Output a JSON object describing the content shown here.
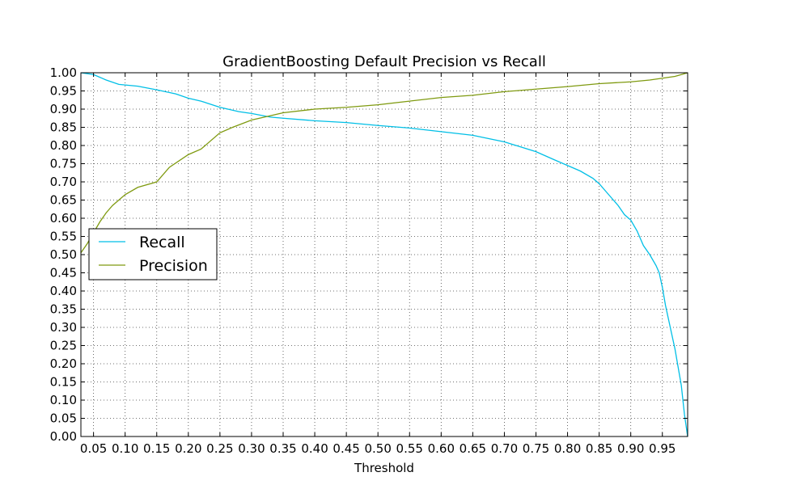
{
  "chart_data": {
    "type": "line",
    "title": "GradientBoosting Default Precision vs Recall",
    "xlabel": "Threshold",
    "ylabel": "",
    "xlim": [
      0.03,
      0.99
    ],
    "ylim": [
      0.0,
      1.0
    ],
    "x_ticks": [
      0.05,
      0.1,
      0.15,
      0.2,
      0.25,
      0.3,
      0.35,
      0.4,
      0.45,
      0.5,
      0.55,
      0.6,
      0.65,
      0.7,
      0.75,
      0.8,
      0.85,
      0.9,
      0.95
    ],
    "x_tick_labels": [
      "0.05",
      "0.10",
      "0.15",
      "0.20",
      "0.25",
      "0.30",
      "0.35",
      "0.40",
      "0.45",
      "0.50",
      "0.55",
      "0.60",
      "0.65",
      "0.70",
      "0.75",
      "0.80",
      "0.85",
      "0.90",
      "0.95"
    ],
    "y_ticks": [
      0.0,
      0.05,
      0.1,
      0.15,
      0.2,
      0.25,
      0.3,
      0.35,
      0.4,
      0.45,
      0.5,
      0.55,
      0.6,
      0.65,
      0.7,
      0.75,
      0.8,
      0.85,
      0.9,
      0.95,
      1.0
    ],
    "y_tick_labels": [
      "0.00",
      "0.05",
      "0.10",
      "0.15",
      "0.20",
      "0.25",
      "0.30",
      "0.35",
      "0.40",
      "0.45",
      "0.50",
      "0.55",
      "0.60",
      "0.65",
      "0.70",
      "0.75",
      "0.80",
      "0.85",
      "0.90",
      "0.95",
      "1.00"
    ],
    "grid": true,
    "legend_position": "center-left",
    "series": [
      {
        "name": "Recall",
        "color": "#00bfe6",
        "x": [
          0.03,
          0.05,
          0.07,
          0.09,
          0.12,
          0.15,
          0.18,
          0.2,
          0.22,
          0.25,
          0.28,
          0.3,
          0.33,
          0.35,
          0.4,
          0.45,
          0.5,
          0.55,
          0.6,
          0.65,
          0.7,
          0.75,
          0.78,
          0.8,
          0.82,
          0.84,
          0.85,
          0.86,
          0.87,
          0.88,
          0.89,
          0.9,
          0.91,
          0.92,
          0.93,
          0.94,
          0.945,
          0.95,
          0.955,
          0.96,
          0.965,
          0.97,
          0.975,
          0.98,
          0.985,
          0.99
        ],
        "y": [
          1.0,
          0.995,
          0.98,
          0.968,
          0.963,
          0.953,
          0.942,
          0.93,
          0.922,
          0.905,
          0.893,
          0.888,
          0.878,
          0.875,
          0.868,
          0.863,
          0.855,
          0.848,
          0.838,
          0.828,
          0.81,
          0.783,
          0.76,
          0.745,
          0.73,
          0.71,
          0.695,
          0.675,
          0.655,
          0.635,
          0.61,
          0.595,
          0.565,
          0.525,
          0.5,
          0.47,
          0.45,
          0.41,
          0.36,
          0.32,
          0.28,
          0.24,
          0.19,
          0.14,
          0.06,
          0.0
        ]
      },
      {
        "name": "Precision",
        "color": "#7f9a10",
        "x": [
          0.03,
          0.04,
          0.05,
          0.06,
          0.07,
          0.08,
          0.1,
          0.12,
          0.15,
          0.17,
          0.2,
          0.22,
          0.25,
          0.27,
          0.3,
          0.33,
          0.35,
          0.4,
          0.45,
          0.5,
          0.55,
          0.6,
          0.65,
          0.7,
          0.75,
          0.8,
          0.85,
          0.9,
          0.93,
          0.95,
          0.97,
          0.98,
          0.99
        ],
        "y": [
          0.505,
          0.53,
          0.56,
          0.59,
          0.615,
          0.635,
          0.665,
          0.685,
          0.7,
          0.74,
          0.775,
          0.79,
          0.835,
          0.85,
          0.87,
          0.882,
          0.89,
          0.9,
          0.905,
          0.912,
          0.922,
          0.932,
          0.938,
          0.948,
          0.955,
          0.962,
          0.97,
          0.975,
          0.98,
          0.985,
          0.99,
          0.995,
          1.0
        ]
      }
    ]
  }
}
